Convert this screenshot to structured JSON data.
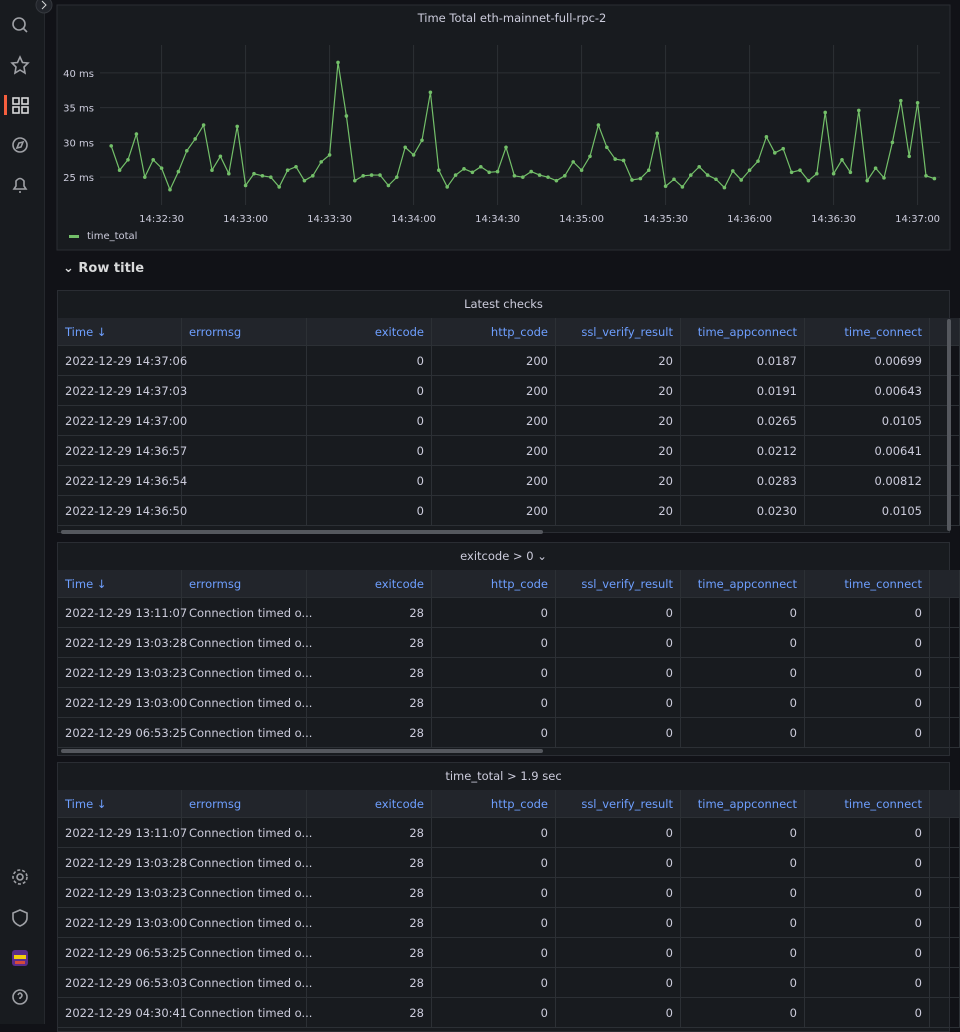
{
  "chart_data": {
    "type": "line",
    "title": "Time Total eth-mainnet-full-rpc-2",
    "x": [
      "14:32:12",
      "14:32:15",
      "14:32:18",
      "14:32:21",
      "14:32:24",
      "14:32:27",
      "14:32:30",
      "14:32:33",
      "14:32:36",
      "14:32:39",
      "14:32:42",
      "14:32:45",
      "14:32:48",
      "14:32:51",
      "14:32:54",
      "14:32:57",
      "14:33:00",
      "14:33:03",
      "14:33:06",
      "14:33:09",
      "14:33:12",
      "14:33:15",
      "14:33:18",
      "14:33:21",
      "14:33:24",
      "14:33:27",
      "14:33:30",
      "14:33:33",
      "14:33:36",
      "14:33:39",
      "14:33:42",
      "14:33:45",
      "14:33:48",
      "14:33:51",
      "14:33:54",
      "14:33:57",
      "14:34:00",
      "14:34:03",
      "14:34:06",
      "14:34:09",
      "14:34:12",
      "14:34:15",
      "14:34:18",
      "14:34:21",
      "14:34:24",
      "14:34:27",
      "14:34:30",
      "14:34:33",
      "14:34:36",
      "14:34:39",
      "14:34:42",
      "14:34:45",
      "14:34:48",
      "14:34:51",
      "14:34:54",
      "14:34:57",
      "14:35:00",
      "14:35:03",
      "14:35:06",
      "14:35:09",
      "14:35:12",
      "14:35:15",
      "14:35:18",
      "14:35:21",
      "14:35:24",
      "14:35:27",
      "14:35:30",
      "14:35:33",
      "14:35:36",
      "14:35:39",
      "14:35:42",
      "14:35:45",
      "14:35:48",
      "14:35:51",
      "14:35:54",
      "14:35:57",
      "14:36:00",
      "14:36:03",
      "14:36:06",
      "14:36:09",
      "14:36:12",
      "14:36:15",
      "14:36:18",
      "14:36:21",
      "14:36:24",
      "14:36:27",
      "14:36:30",
      "14:36:33",
      "14:36:36",
      "14:36:39",
      "14:36:42",
      "14:36:45",
      "14:36:48",
      "14:36:51",
      "14:36:54",
      "14:36:57",
      "14:37:00",
      "14:37:03",
      "14:37:06"
    ],
    "series": [
      {
        "name": "time_total",
        "color": "#73bf69",
        "values": [
          29.5,
          26,
          27.5,
          31.2,
          25,
          27.5,
          26.3,
          23.2,
          25.8,
          28.8,
          30.5,
          32.5,
          26,
          28,
          25.5,
          32.3,
          23.8,
          25.5,
          25.2,
          25,
          23.6,
          26,
          26.5,
          24.5,
          25.2,
          27.2,
          28.2,
          41.5,
          33.8,
          24.5,
          25.2,
          25.3,
          25.3,
          23.8,
          25,
          29.3,
          28.2,
          30.3,
          37.2,
          26,
          23.6,
          25.3,
          26.2,
          25.7,
          26.5,
          25.7,
          25.8,
          29.3,
          25.2,
          25,
          25.8,
          25.3,
          25,
          24.5,
          25.2,
          27.2,
          26,
          28,
          32.5,
          29.3,
          27.6,
          27.4,
          24.6,
          24.8,
          26,
          31.3,
          23.7,
          24.7,
          23.6,
          25.3,
          26.5,
          25.3,
          24.7,
          23.5,
          25.9,
          24.6,
          26,
          27.3,
          30.8,
          28.5,
          29.1,
          25.7,
          26,
          24.5,
          25.5,
          34.3,
          25.5,
          27.5,
          25.7,
          34.6,
          24.5,
          26.3,
          24.9,
          30,
          36,
          28,
          35.7,
          25.2,
          24.8
        ]
      }
    ],
    "xlim": [
      "14:32:08",
      "14:37:08"
    ],
    "xticks": [
      "14:32:30",
      "14:33:00",
      "14:33:30",
      "14:34:00",
      "14:34:30",
      "14:35:00",
      "14:35:30",
      "14:36:00",
      "14:36:30",
      "14:37:00"
    ],
    "ylim": [
      21,
      44
    ],
    "yticks": [
      {
        "value": 25,
        "label": "25 ms"
      },
      {
        "value": 30,
        "label": "30 ms"
      },
      {
        "value": 35,
        "label": "35 ms"
      },
      {
        "value": 40,
        "label": "40 ms"
      }
    ],
    "grid": true,
    "legend": "bottom-left"
  },
  "row_title": "Row title",
  "tables": [
    {
      "title": "Latest checks",
      "columns": [
        "Time",
        "errormsg",
        "exitcode",
        "http_code",
        "ssl_verify_result",
        "time_appconnect",
        "time_connect"
      ],
      "rows": [
        [
          "2022-12-29 14:37:06",
          null,
          "0",
          "200",
          "20",
          "0.0187",
          "0.00699"
        ],
        [
          "2022-12-29 14:37:03",
          null,
          "0",
          "200",
          "20",
          "0.0191",
          "0.00643"
        ],
        [
          "2022-12-29 14:37:00",
          null,
          "0",
          "200",
          "20",
          "0.0265",
          "0.0105"
        ],
        [
          "2022-12-29 14:36:57",
          null,
          "0",
          "200",
          "20",
          "0.0212",
          "0.00641"
        ],
        [
          "2022-12-29 14:36:54",
          null,
          "0",
          "200",
          "20",
          "0.0283",
          "0.00812"
        ],
        [
          "2022-12-29 14:36:50",
          null,
          "0",
          "200",
          "20",
          "0.0230",
          "0.0105"
        ]
      ]
    },
    {
      "title": "exitcode > 0",
      "columns": [
        "Time",
        "errormsg",
        "exitcode",
        "http_code",
        "ssl_verify_result",
        "time_appconnect",
        "time_connect"
      ],
      "rows": [
        [
          "2022-12-29 13:11:07",
          "Connection timed o...",
          "28",
          "0",
          "0",
          "0",
          "0"
        ],
        [
          "2022-12-29 13:03:28",
          "Connection timed o...",
          "28",
          "0",
          "0",
          "0",
          "0"
        ],
        [
          "2022-12-29 13:03:23",
          "Connection timed o...",
          "28",
          "0",
          "0",
          "0",
          "0"
        ],
        [
          "2022-12-29 13:03:00",
          "Connection timed o...",
          "28",
          "0",
          "0",
          "0",
          "0"
        ],
        [
          "2022-12-29 06:53:25",
          "Connection timed o...",
          "28",
          "0",
          "0",
          "0",
          "0"
        ]
      ]
    },
    {
      "title": "time_total > 1.9 sec",
      "columns": [
        "Time",
        "errormsg",
        "exitcode",
        "http_code",
        "ssl_verify_result",
        "time_appconnect",
        "time_connect"
      ],
      "rows": [
        [
          "2022-12-29 13:11:07",
          "Connection timed o...",
          "28",
          "0",
          "0",
          "0",
          "0"
        ],
        [
          "2022-12-29 13:03:28",
          "Connection timed o...",
          "28",
          "0",
          "0",
          "0",
          "0"
        ],
        [
          "2022-12-29 13:03:23",
          "Connection timed o...",
          "28",
          "0",
          "0",
          "0",
          "0"
        ],
        [
          "2022-12-29 13:03:00",
          "Connection timed o...",
          "28",
          "0",
          "0",
          "0",
          "0"
        ],
        [
          "2022-12-29 06:53:25",
          "Connection timed o...",
          "28",
          "0",
          "0",
          "0",
          "0"
        ],
        [
          "2022-12-29 06:53:03",
          "Connection timed o...",
          "28",
          "0",
          "0",
          "0",
          "0"
        ],
        [
          "2022-12-29 04:30:41",
          "Connection timed o...",
          "28",
          "0",
          "0",
          "0",
          "0"
        ]
      ]
    }
  ]
}
